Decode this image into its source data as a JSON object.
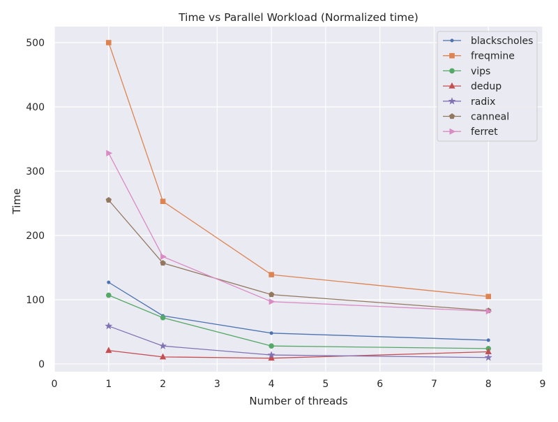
{
  "chart_data": {
    "type": "line",
    "title": "Time vs Parallel Workload (Normalized time)",
    "xlabel": "Number of threads",
    "ylabel": "Time",
    "xlim": [
      0,
      9
    ],
    "ylim": [
      -12,
      525
    ],
    "x_ticks": [
      0,
      1,
      2,
      3,
      4,
      5,
      6,
      7,
      8,
      9
    ],
    "y_ticks": [
      0,
      100,
      200,
      300,
      400,
      500
    ],
    "grid": true,
    "legend_position": "top-right",
    "x": [
      1,
      2,
      4,
      8
    ],
    "series": [
      {
        "name": "blackscholes",
        "values": [
          127,
          75,
          48,
          37
        ],
        "color": "#4c72b0",
        "marker": "point"
      },
      {
        "name": "freqmine",
        "values": [
          500,
          253,
          139,
          105
        ],
        "color": "#dd8452",
        "marker": "square"
      },
      {
        "name": "vips",
        "values": [
          107,
          72,
          28,
          24
        ],
        "color": "#55a868",
        "marker": "circle"
      },
      {
        "name": "dedup",
        "values": [
          21,
          11,
          9,
          19
        ],
        "color": "#c44e52",
        "marker": "triangle-up"
      },
      {
        "name": "radix",
        "values": [
          59,
          28,
          14,
          10
        ],
        "color": "#8172b3",
        "marker": "star"
      },
      {
        "name": "canneal",
        "values": [
          255,
          157,
          108,
          83
        ],
        "color": "#937860",
        "marker": "pentagon"
      },
      {
        "name": "ferret",
        "values": [
          328,
          167,
          97,
          82
        ],
        "color": "#da8bc3",
        "marker": "triangle-right"
      }
    ]
  }
}
